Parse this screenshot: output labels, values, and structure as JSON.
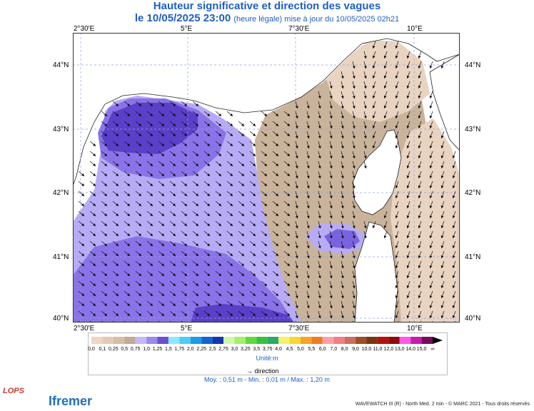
{
  "header": {
    "title": "Hauteur significative et direction des vagues",
    "date_line": "le 10/05/2025 23:00",
    "update_note": "(heure légale) mise à jour du 10/05/2025 02h21"
  },
  "axes": {
    "lon_labels": [
      "2°30'E",
      "5°E",
      "7°30'E",
      "10°E"
    ],
    "lat_labels": [
      "44°N",
      "43°N",
      "42°N",
      "41°N",
      "40°N"
    ]
  },
  "legend": {
    "values": [
      "0,0",
      "0,1",
      "0,25",
      "0,5",
      "0,75",
      "1,0",
      "1,25",
      "1,5",
      "1,75",
      "2,0",
      "2,25",
      "2,5",
      "2,75",
      "3,0",
      "3,25",
      "3,5",
      "3,75",
      "4,0",
      "4,5",
      "5,0",
      "5,5",
      "6,0",
      "7,0",
      "8,0",
      "9,0",
      "10,0",
      "11,0",
      "12,0",
      "13,0",
      "14,0",
      "15,0",
      "∞"
    ],
    "colors": [
      "#efd6c4",
      "#e7c9b3",
      "#d5bea2",
      "#c3aa92",
      "#c5b8f8",
      "#9b88ec",
      "#6a4fd2",
      "#8ee8ff",
      "#4bcdf4",
      "#1b9ae6",
      "#1164d2",
      "#1138b0",
      "#d3f7a8",
      "#a4ef6c",
      "#5fd93e",
      "#35c23a",
      "#2aa96c",
      "#f4f26a",
      "#f6d830",
      "#f6a522",
      "#ef7b1f",
      "#ff9fa8",
      "#f27d86",
      "#c96f60",
      "#995028",
      "#7a3612",
      "#b80f0f",
      "#8d0b0b",
      "#ff58e8",
      "#c71da8",
      "#7a0a5c"
    ],
    "unit": "Unité:m",
    "direction_label": "direction"
  },
  "stats": {
    "text": "Moy. : 0,51 m   -   Min. : 0,01 m / Max. : 1,20 m"
  },
  "footer": {
    "text": "WAVEWATCH III (R) - North Med. 2 min - © MARC 2021 - Tous droits réservés"
  },
  "logos": {
    "lops": "LOPS",
    "ifremer": "Ifremer"
  },
  "map_colors": {
    "outside": "#ffffff",
    "land": "#ffffff",
    "deep_purple": "#5a3fc9",
    "purple": "#8a73e8",
    "lavender": "#b8abf6",
    "tan": "#c9b39a",
    "light_tan": "#e9d3c1",
    "island_purple": "#7a63df"
  }
}
